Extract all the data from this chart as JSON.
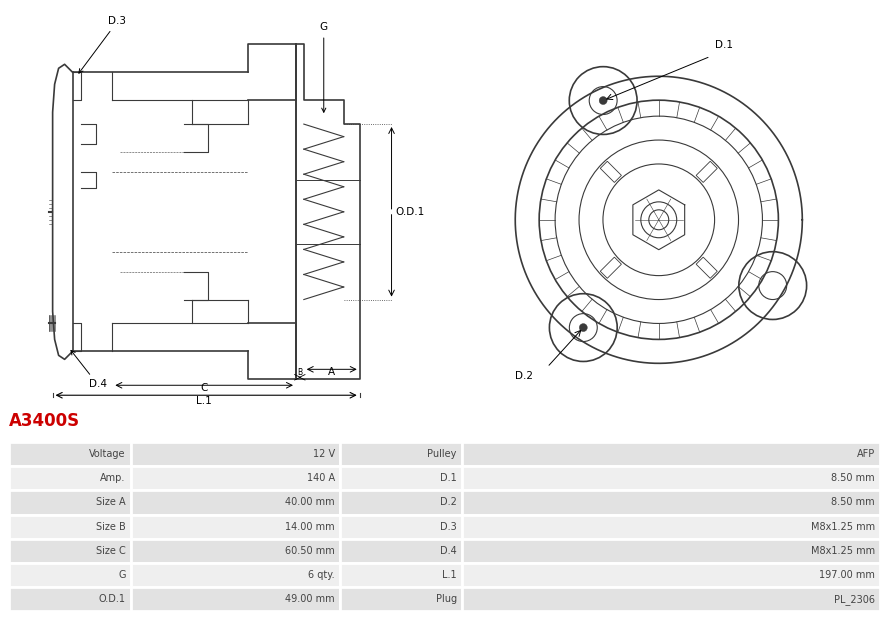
{
  "title": "A3400S",
  "title_color": "#cc0000",
  "bg_color": "#ffffff",
  "table_row_bg1": "#e2e2e2",
  "table_row_bg2": "#efefef",
  "table_border_color": "#ffffff",
  "rows": [
    [
      "Voltage",
      "12 V",
      "Pulley",
      "AFP"
    ],
    [
      "Amp.",
      "140 A",
      "D.1",
      "8.50 mm"
    ],
    [
      "Size A",
      "40.00 mm",
      "D.2",
      "8.50 mm"
    ],
    [
      "Size B",
      "14.00 mm",
      "D.3",
      "M8x1.25 mm"
    ],
    [
      "Size C",
      "60.50 mm",
      "D.4",
      "M8x1.25 mm"
    ],
    [
      "G",
      "6 qty.",
      "L.1",
      "197.00 mm"
    ],
    [
      "O.D.1",
      "49.00 mm",
      "Plug",
      "PL_2306"
    ]
  ],
  "lc": "#3a3a3a",
  "lw": 0.8,
  "lw_thick": 1.2,
  "fontsize": 7.5
}
